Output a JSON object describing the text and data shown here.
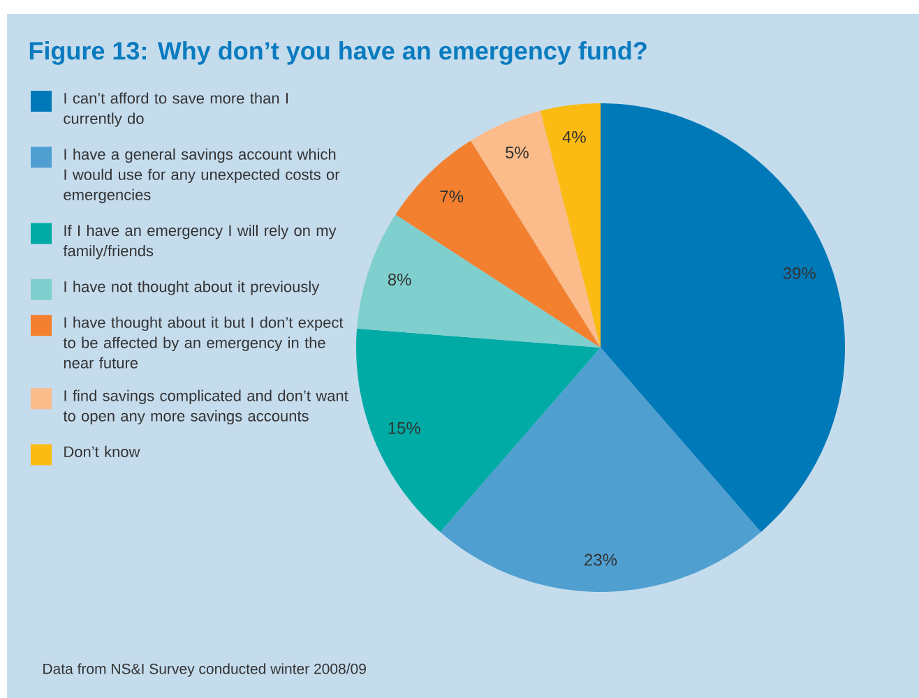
{
  "chart_data": {
    "type": "pie",
    "title": "Figure 13: Why don’t you have an emergency fund?",
    "categories": [
      "I can’t afford to save more than I currently do",
      "I have a general savings account which I would use for any unexpected costs or emergencies",
      "If I have an emergency I will rely on my family/friends",
      "I have not thought about it previously",
      "I have thought about it but I don’t expect to be affected by an emergency in the near future",
      "I find savings complicated and don’t want to open any more savings accounts",
      "Don’t know"
    ],
    "values": [
      39,
      23,
      15,
      8,
      7,
      5,
      4
    ],
    "colors": [
      "#0079b8",
      "#4f9fd0",
      "#00aba5",
      "#80cfcf",
      "#f3802e",
      "#fbbb8a",
      "#fbbb12"
    ],
    "value_labels": [
      "39%",
      "23%",
      "15%",
      "8%",
      "7%",
      "5%",
      "4%"
    ],
    "legend": "left",
    "annotations": [
      "Data from NS&I Survey conducted winter 2008/09"
    ]
  }
}
